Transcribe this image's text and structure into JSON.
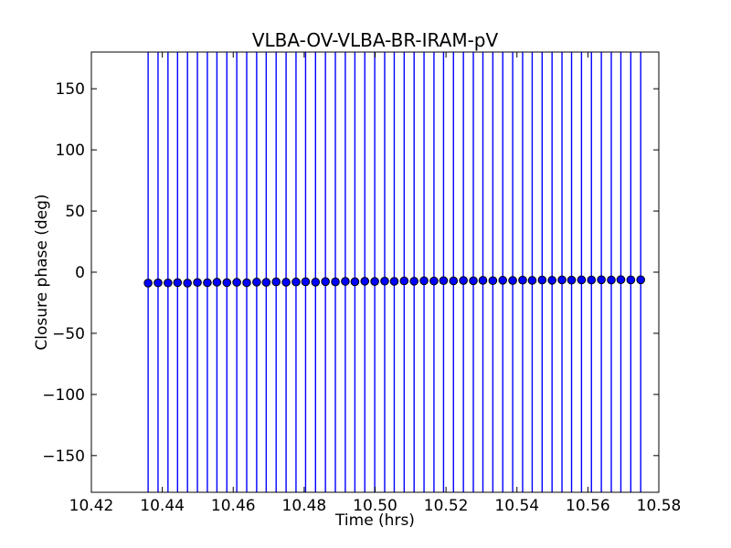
{
  "chart_data": {
    "type": "scatter",
    "title": "VLBA-OV-VLBA-BR-IRAM-pV",
    "xlabel": "Time (hrs)",
    "ylabel": "Closure phase (deg)",
    "xlim": [
      10.42,
      10.58
    ],
    "ylim": [
      -180,
      180
    ],
    "grid": false,
    "legend": null,
    "xticks": [
      10.42,
      10.44,
      10.46,
      10.48,
      10.5,
      10.52,
      10.54,
      10.56,
      10.58
    ],
    "xtick_labels": [
      "10.42",
      "10.44",
      "10.46",
      "10.48",
      "10.50",
      "10.52",
      "10.54",
      "10.56",
      "10.58"
    ],
    "yticks": [
      -150,
      -100,
      -50,
      0,
      50,
      100,
      150
    ],
    "ytick_labels": [
      "−150",
      "−100",
      "−50",
      "0",
      "50",
      "100",
      "150"
    ],
    "colors": {
      "series": "#0000ff",
      "marker_face": "#0000ff",
      "marker_edge": "#000000",
      "errorbar": "#0000ff",
      "axes": "#000000",
      "background": "#ffffff"
    },
    "marker": "circle",
    "errorbars": {
      "style": "vertical line per point",
      "note": "uncertainties exceed the y-range; bars are clipped to the full plot height (±180 deg)"
    },
    "series": [
      {
        "name": "closure phase",
        "x": [
          10.436,
          10.4388,
          10.4416,
          10.4443,
          10.4471,
          10.4499,
          10.4527,
          10.4554,
          10.4582,
          10.461,
          10.4638,
          10.4666,
          10.4693,
          10.4721,
          10.4749,
          10.4777,
          10.4804,
          10.4832,
          10.486,
          10.4888,
          10.4916,
          10.4943,
          10.4971,
          10.4999,
          10.5027,
          10.5054,
          10.5082,
          10.511,
          10.5138,
          10.5166,
          10.5193,
          10.5221,
          10.5249,
          10.5277,
          10.5304,
          10.5332,
          10.536,
          10.5388,
          10.5416,
          10.5443,
          10.5471,
          10.5499,
          10.5527,
          10.5554,
          10.5582,
          10.561,
          10.5638,
          10.5666,
          10.5693,
          10.5721,
          10.5749
        ],
        "y": [
          -8.9,
          -8.7,
          -8.8,
          -8.5,
          -8.9,
          -8.4,
          -8.6,
          -8.2,
          -8.5,
          -8.3,
          -8.6,
          -8.1,
          -8.3,
          -7.9,
          -8.2,
          -8.0,
          -7.8,
          -8.1,
          -7.7,
          -7.9,
          -7.5,
          -7.8,
          -7.4,
          -7.6,
          -7.3,
          -7.5,
          -7.1,
          -7.4,
          -7.0,
          -7.2,
          -6.9,
          -7.1,
          -6.8,
          -7.0,
          -6.7,
          -6.9,
          -6.6,
          -6.8,
          -6.5,
          -6.7,
          -6.4,
          -6.6,
          -6.3,
          -6.5,
          -6.3,
          -6.4,
          -6.2,
          -6.4,
          -6.1,
          -6.3,
          -6.2
        ]
      }
    ]
  }
}
